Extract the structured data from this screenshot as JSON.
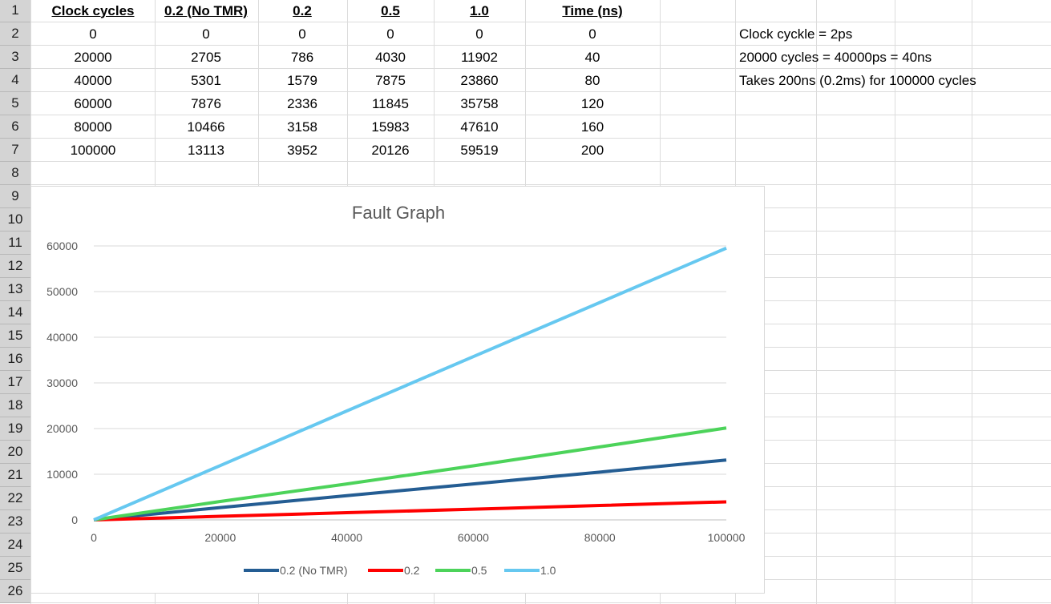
{
  "sheet": {
    "row_numbers": [
      "1",
      "2",
      "3",
      "4",
      "5",
      "6",
      "7",
      "8",
      "9",
      "10",
      "11",
      "12",
      "13",
      "14",
      "15",
      "16",
      "17",
      "18",
      "19",
      "20",
      "21",
      "22",
      "23",
      "24",
      "25",
      "26"
    ],
    "headers": [
      "Clock cycles",
      "0.2 (No TMR)",
      "0.2",
      "0.5",
      "1.0",
      "Time (ns)"
    ],
    "rows": [
      [
        "0",
        "0",
        "0",
        "0",
        "0",
        "0"
      ],
      [
        "20000",
        "2705",
        "786",
        "4030",
        "11902",
        "40"
      ],
      [
        "40000",
        "5301",
        "1579",
        "7875",
        "23860",
        "80"
      ],
      [
        "60000",
        "7876",
        "2336",
        "11845",
        "35758",
        "120"
      ],
      [
        "80000",
        "10466",
        "3158",
        "15983",
        "47610",
        "160"
      ],
      [
        "100000",
        "13113",
        "3952",
        "20126",
        "59519",
        "200"
      ]
    ],
    "notes": [
      "Clock cyckle = 2ps",
      "20000 cycles = 40000ps = 40ns",
      "Takes 200ns (0.2ms) for 100000 cycles"
    ]
  },
  "chart_data": {
    "type": "line",
    "title": "Fault Graph",
    "x": [
      0,
      20000,
      40000,
      60000,
      80000,
      100000
    ],
    "xlim": [
      0,
      100000
    ],
    "ylim": [
      0,
      60000
    ],
    "xticks": [
      "0",
      "20000",
      "40000",
      "60000",
      "80000",
      "100000"
    ],
    "yticks": [
      "0",
      "10000",
      "20000",
      "30000",
      "40000",
      "50000",
      "60000"
    ],
    "grid": "horizontal",
    "legend": "bottom",
    "series": [
      {
        "name": "0.2 (No TMR)",
        "color": "#245d93",
        "values": [
          0,
          2705,
          5301,
          7876,
          10466,
          13113
        ]
      },
      {
        "name": "0.2",
        "color": "#ff0000",
        "values": [
          0,
          786,
          1579,
          2336,
          3158,
          3952
        ]
      },
      {
        "name": "0.5",
        "color": "#4cd35a",
        "values": [
          0,
          4030,
          7875,
          11845,
          15983,
          20126
        ]
      },
      {
        "name": "1.0",
        "color": "#66c8f0",
        "values": [
          0,
          11902,
          23860,
          35758,
          47610,
          59519
        ]
      }
    ]
  }
}
